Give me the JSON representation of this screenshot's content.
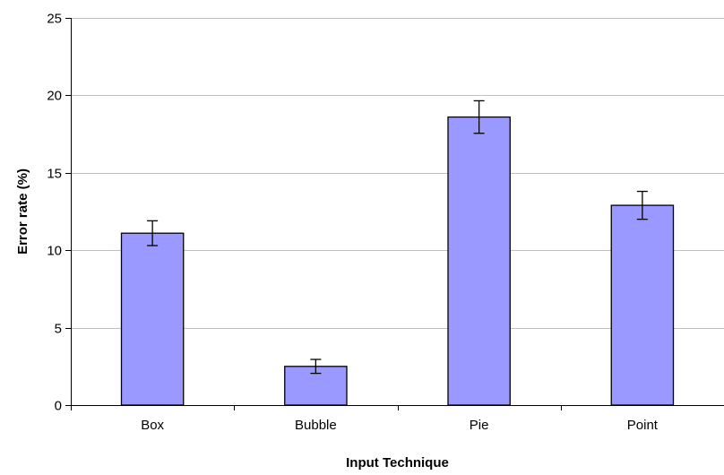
{
  "chart_data": {
    "type": "bar",
    "title": "",
    "xlabel": "Input Technique",
    "ylabel": "Error rate (%)",
    "categories": [
      "Box",
      "Bubble",
      "Pie",
      "Point"
    ],
    "values": [
      11.1,
      2.5,
      18.6,
      12.9
    ],
    "error_bars": [
      0.8,
      0.45,
      1.05,
      0.9
    ],
    "ylim": [
      0,
      25
    ],
    "yticks": [
      0,
      5,
      10,
      15,
      20,
      25
    ],
    "grid": true,
    "legend": "none",
    "colors": {
      "bar_fill": "#9999ff",
      "bar_stroke": "#000000",
      "grid": "#c0c0c0",
      "axis": "#000000"
    }
  }
}
